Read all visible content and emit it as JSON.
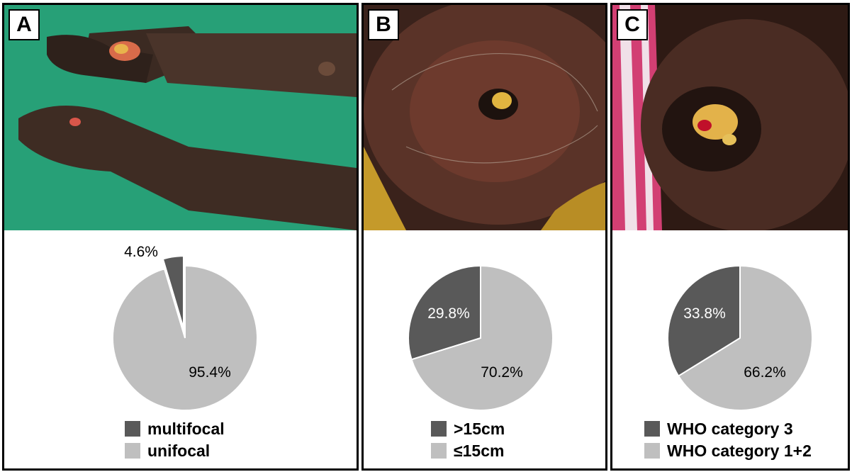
{
  "panels": [
    {
      "label": "A"
    },
    {
      "label": "B"
    },
    {
      "label": "C"
    }
  ],
  "colors": {
    "dark": "#595959",
    "light": "#bfbfbf",
    "label_dark": "#000000",
    "label_light": "#ffffff"
  },
  "chart_data": [
    {
      "type": "pie",
      "panel": "A",
      "slices": [
        {
          "label": "multifocal",
          "value": 4.6,
          "display": "4.6%"
        },
        {
          "label": "unifocal",
          "value": 95.4,
          "display": "95.4%"
        }
      ],
      "legend": [
        "multifocal",
        "unifocal"
      ],
      "legend_placement": "bottom"
    },
    {
      "type": "pie",
      "panel": "B",
      "slices": [
        {
          "label": ">15cm",
          "value": 29.8,
          "display": "29.8%"
        },
        {
          "label": "≤15cm",
          "value": 70.2,
          "display": "70.2%"
        }
      ],
      "legend": [
        ">15cm",
        "≤15cm"
      ],
      "legend_placement": "bottom"
    },
    {
      "type": "pie",
      "panel": "C",
      "slices": [
        {
          "label": "WHO category 3",
          "value": 33.8,
          "display": "33.8%"
        },
        {
          "label": "WHO category 1+2",
          "value": 66.2,
          "display": "66.2%"
        }
      ],
      "legend": [
        "WHO category 3",
        "WHO category 1+2"
      ],
      "legend_placement": "bottom"
    }
  ]
}
